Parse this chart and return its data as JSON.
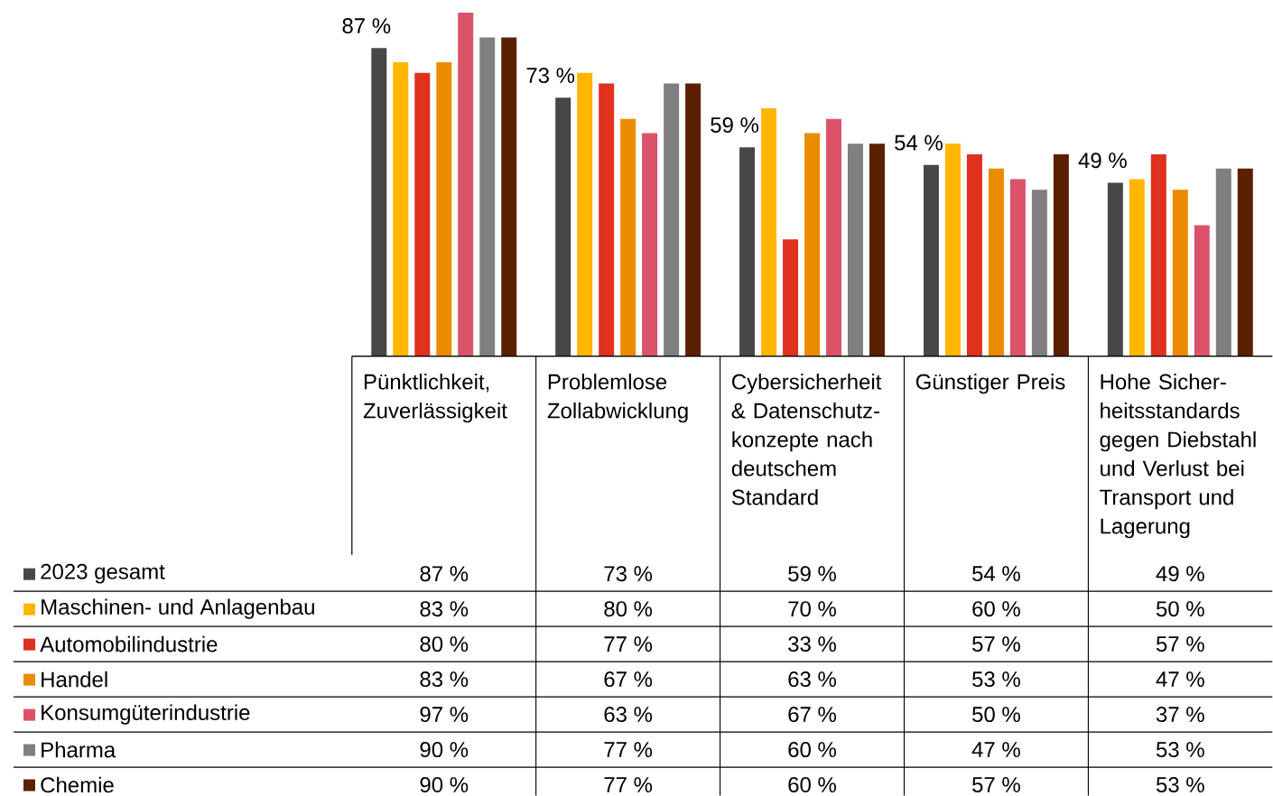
{
  "chart_data": {
    "type": "bar",
    "categories": [
      "Pünktlichkeit, Zuverlässigkeit",
      "Problemlose Zollabwicklung",
      "Cybersicherheit & Datenschutz-konzepte nach deutschem Standard",
      "Günstiger Preis",
      "Hohe Sicher-heitsstandards gegen Diebstahl und Verlust bei Transport und Lagerung"
    ],
    "series": [
      {
        "name": "2023 gesamt",
        "color": "#474747",
        "values": [
          87,
          73,
          59,
          54,
          49
        ],
        "value_labels": [
          "87 %",
          "73 %",
          "59 %",
          "54 %",
          "49 %"
        ]
      },
      {
        "name": "Maschinen- und Anlagenbau",
        "color": "#ffb600",
        "values": [
          83,
          80,
          70,
          60,
          50
        ],
        "value_labels": [
          "83 %",
          "80 %",
          "70 %",
          "60 %",
          "50 %"
        ]
      },
      {
        "name": "Automobilindustrie",
        "color": "#e0301e",
        "values": [
          80,
          77,
          33,
          57,
          57
        ],
        "value_labels": [
          "80 %",
          "77 %",
          "33 %",
          "57 %",
          "57 %"
        ]
      },
      {
        "name": "Handel",
        "color": "#eb8c00",
        "values": [
          83,
          67,
          63,
          53,
          47
        ],
        "value_labels": [
          "83 %",
          "67 %",
          "63 %",
          "53 %",
          "47 %"
        ]
      },
      {
        "name": "Konsumgüterindustrie",
        "color": "#db536a",
        "values": [
          97,
          63,
          67,
          50,
          37
        ],
        "value_labels": [
          "97 %",
          "63 %",
          "67 %",
          "50 %",
          "37 %"
        ]
      },
      {
        "name": "Pharma",
        "color": "#7f7f7f",
        "values": [
          90,
          77,
          60,
          47,
          53
        ],
        "value_labels": [
          "90 %",
          "77 %",
          "60 %",
          "47 %",
          "53 %"
        ]
      },
      {
        "name": "Chemie",
        "color": "#5a2000",
        "values": [
          90,
          77,
          60,
          57,
          53
        ],
        "value_labels": [
          "90 %",
          "77 %",
          "60 %",
          "57 %",
          "53 %"
        ]
      }
    ],
    "legend": "bottom left"
  }
}
